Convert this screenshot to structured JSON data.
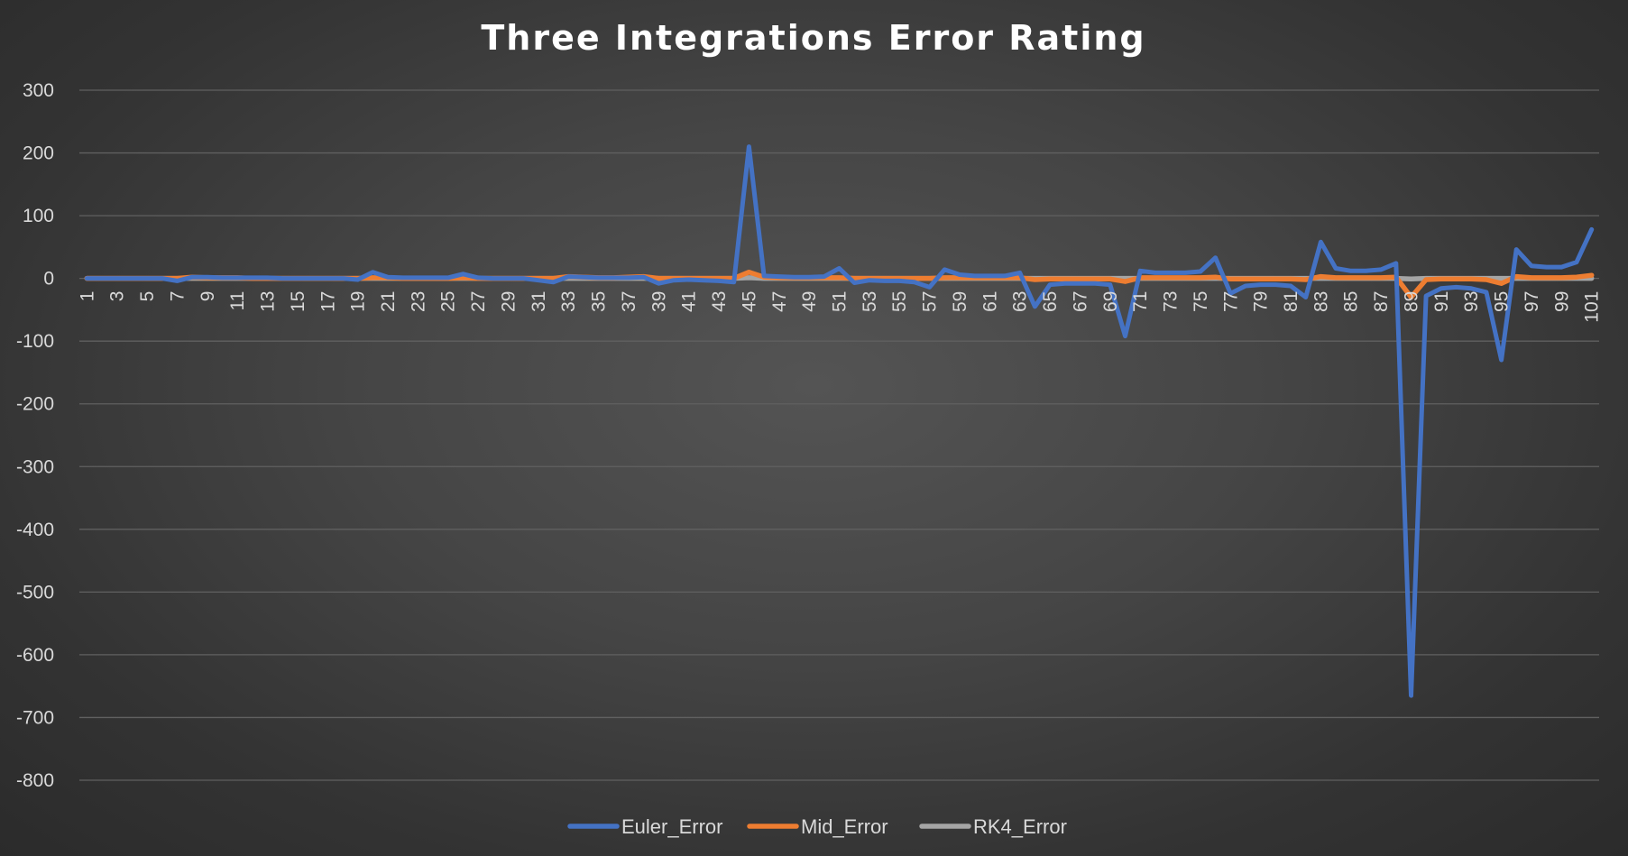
{
  "chart_data": {
    "type": "line",
    "title": "Three Integrations Error Rating",
    "xlabel": "",
    "ylabel": "",
    "ylim": [
      -800,
      300
    ],
    "yticks": [
      300,
      200,
      100,
      0,
      -100,
      -200,
      -300,
      -400,
      -500,
      -600,
      -700,
      -800
    ],
    "x": [
      1,
      2,
      3,
      4,
      5,
      6,
      7,
      8,
      9,
      10,
      11,
      12,
      13,
      14,
      15,
      16,
      17,
      18,
      19,
      20,
      21,
      22,
      23,
      24,
      25,
      26,
      27,
      28,
      29,
      30,
      31,
      32,
      33,
      34,
      35,
      36,
      37,
      38,
      39,
      40,
      41,
      42,
      43,
      44,
      45,
      46,
      47,
      48,
      49,
      50,
      51,
      52,
      53,
      54,
      55,
      56,
      57,
      58,
      59,
      60,
      61,
      62,
      63,
      64,
      65,
      66,
      67,
      68,
      69,
      70,
      71,
      72,
      73,
      74,
      75,
      76,
      77,
      78,
      79,
      80,
      81,
      82,
      83,
      84,
      85,
      86,
      87,
      88,
      89,
      90,
      91,
      92,
      93,
      94,
      95,
      96,
      97,
      98,
      99,
      100,
      101
    ],
    "x_tick_labels": [
      "1",
      "3",
      "5",
      "7",
      "9",
      "11",
      "13",
      "15",
      "17",
      "19",
      "21",
      "23",
      "25",
      "27",
      "29",
      "31",
      "33",
      "35",
      "37",
      "39",
      "41",
      "43",
      "45",
      "47",
      "49",
      "51",
      "53",
      "55",
      "57",
      "59",
      "61",
      "63",
      "65",
      "67",
      "69",
      "71",
      "73",
      "75",
      "77",
      "79",
      "81",
      "83",
      "85",
      "87",
      "89",
      "91",
      "93",
      "95",
      "97",
      "99",
      "101"
    ],
    "grid": true,
    "legend_position": "bottom",
    "series": [
      {
        "name": "Euler_Error",
        "color": "#4472c4",
        "values": [
          0,
          0,
          0,
          0,
          0,
          0,
          -4,
          2,
          2,
          1,
          1,
          1,
          1,
          0,
          0,
          0,
          0,
          0,
          -2,
          10,
          2,
          1,
          1,
          1,
          1,
          7,
          1,
          0,
          0,
          0,
          -3,
          -6,
          3,
          2,
          1,
          1,
          1,
          2,
          -8,
          -3,
          -2,
          -3,
          -4,
          -6,
          210,
          4,
          3,
          2,
          2,
          3,
          16,
          -7,
          -3,
          -4,
          -4,
          -6,
          -14,
          14,
          6,
          4,
          4,
          4,
          9,
          -45,
          -10,
          -8,
          -8,
          -8,
          -10,
          -92,
          12,
          9,
          9,
          9,
          11,
          33,
          -24,
          -12,
          -10,
          -10,
          -12,
          -30,
          58,
          16,
          12,
          12,
          14,
          24,
          -665,
          -28,
          -16,
          -14,
          -16,
          -22,
          -130,
          46,
          20,
          18,
          18,
          26,
          78
        ]
      },
      {
        "name": "Mid_Error",
        "color": "#ed7d31",
        "values": [
          0,
          0,
          0,
          0,
          0,
          0,
          0,
          2,
          1,
          1,
          1,
          0,
          0,
          0,
          0,
          0,
          0,
          0,
          0,
          1,
          1,
          0,
          0,
          0,
          0,
          1,
          0,
          0,
          0,
          0,
          0,
          0,
          3,
          2,
          1,
          1,
          2,
          3,
          0,
          0,
          0,
          0,
          0,
          0,
          10,
          2,
          1,
          1,
          1,
          1,
          1,
          0,
          0,
          0,
          0,
          0,
          0,
          1,
          1,
          1,
          1,
          1,
          1,
          -2,
          -1,
          -1,
          -1,
          -1,
          -1,
          -5,
          1,
          1,
          1,
          1,
          1,
          2,
          -1,
          -1,
          -1,
          -1,
          -1,
          -2,
          3,
          1,
          1,
          1,
          1,
          2,
          -30,
          -2,
          -1,
          -1,
          -1,
          -2,
          -8,
          3,
          1,
          1,
          1,
          2,
          5
        ]
      },
      {
        "name": "RK4_Error",
        "color": "#a5a5a5",
        "values": [
          0,
          0,
          0,
          0,
          0,
          0,
          0,
          0,
          0,
          0,
          0,
          0,
          0,
          0,
          0,
          0,
          0,
          0,
          0,
          0,
          0,
          0,
          0,
          0,
          0,
          0,
          0,
          0,
          0,
          0,
          0,
          0,
          0,
          0,
          0,
          0,
          0,
          0,
          0,
          0,
          0,
          0,
          0,
          0,
          1,
          0,
          0,
          0,
          0,
          0,
          0,
          0,
          0,
          0,
          0,
          0,
          0,
          0,
          0,
          0,
          0,
          0,
          0,
          0,
          0,
          0,
          0,
          0,
          0,
          0,
          0,
          0,
          0,
          0,
          0,
          0,
          0,
          0,
          0,
          0,
          0,
          0,
          0,
          0,
          0,
          0,
          0,
          0,
          -1,
          0,
          0,
          0,
          0,
          0,
          0,
          0,
          0,
          0,
          0,
          0,
          0
        ]
      }
    ]
  }
}
